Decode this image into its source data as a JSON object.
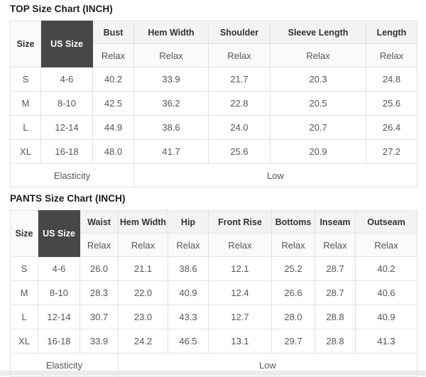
{
  "tables": [
    {
      "title": "TOP Size Chart (INCH)",
      "fit_label": "Relax",
      "columns": [
        "Size",
        "US Size",
        "Bust",
        "Hem Width",
        "Shoulder",
        "Sleeve Length",
        "Length"
      ],
      "rows": [
        [
          "S",
          "4-6",
          "40.2",
          "33.9",
          "21.7",
          "20.3",
          "24.8"
        ],
        [
          "M",
          "8-10",
          "42.5",
          "36.2",
          "22.8",
          "20.5",
          "25.6"
        ],
        [
          "L",
          "12-14",
          "44.9",
          "38.6",
          "24.0",
          "20.7",
          "26.4"
        ],
        [
          "XL",
          "16-18",
          "48.0",
          "41.7",
          "25.6",
          "20.9",
          "27.2"
        ]
      ],
      "footer": {
        "label": "Elasticity",
        "value": "Low",
        "label_span": 3
      }
    },
    {
      "title": "PANTS Size Chart (INCH)",
      "fit_label": "Relax",
      "columns": [
        "Size",
        "US Size",
        "Waist",
        "Hem Width",
        "Hip",
        "Front Rise",
        "Bottoms",
        "Inseam",
        "Outseam"
      ],
      "rows": [
        [
          "S",
          "4-6",
          "26.0",
          "21.1",
          "38.6",
          "12.1",
          "25.2",
          "28.7",
          "40.2"
        ],
        [
          "M",
          "8-10",
          "28.3",
          "22.0",
          "40.9",
          "12.4",
          "26.6",
          "28.7",
          "40.6"
        ],
        [
          "L",
          "12-14",
          "30.7",
          "23.0",
          "43.3",
          "12.7",
          "28.0",
          "28.8",
          "40.9"
        ],
        [
          "XL",
          "16-18",
          "33.9",
          "24.2",
          "46.5",
          "13.1",
          "29.7",
          "28.8",
          "41.3"
        ]
      ],
      "footer": {
        "label": "Elasticity",
        "value": "Low",
        "label_span": 3
      }
    }
  ],
  "colors": {
    "us_size_header_bg": "#474747",
    "us_size_header_text": "#ffffff",
    "header_bg": "#f3f3f3",
    "fit_row_bg": "#fafafa",
    "border": "#e2e2e2",
    "body_text": "#555555",
    "header_text": "#333333"
  }
}
